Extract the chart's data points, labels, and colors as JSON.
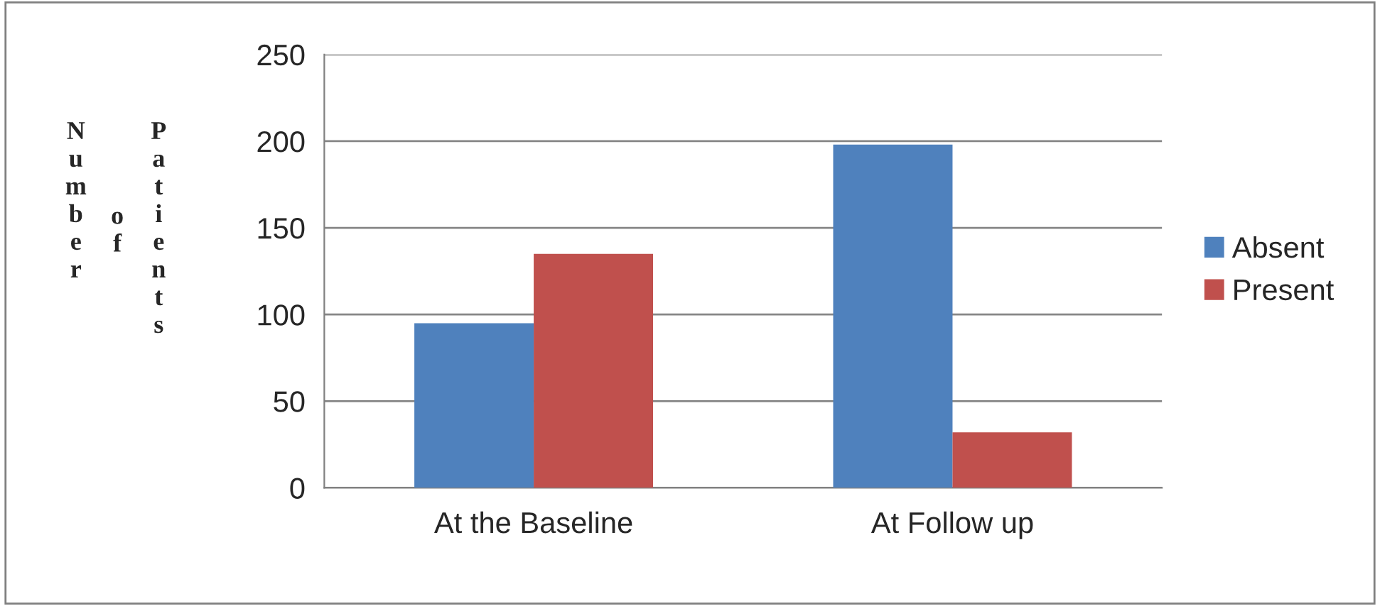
{
  "chart_data": {
    "type": "bar",
    "categories": [
      "At the Baseline",
      "At Follow up"
    ],
    "series": [
      {
        "name": "Absent",
        "color": "#4f81bd",
        "values": [
          95,
          198
        ]
      },
      {
        "name": "Present",
        "color": "#c0504d",
        "values": [
          135,
          32
        ]
      }
    ],
    "ylabel": "Number of Patients",
    "ylim": [
      0,
      250
    ],
    "yticks": [
      0,
      50,
      100,
      150,
      200,
      250
    ],
    "grid": "y",
    "legend": "right"
  }
}
